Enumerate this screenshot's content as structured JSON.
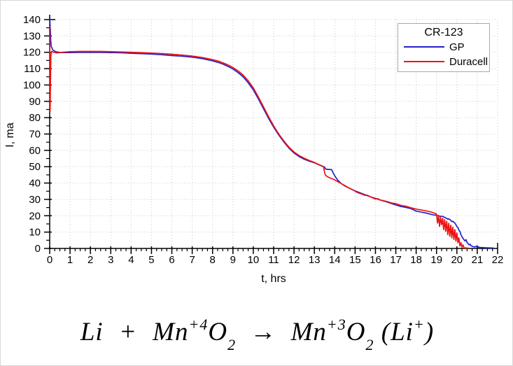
{
  "chart_data": {
    "type": "line",
    "title": "CR-123",
    "xlabel": "t, hrs",
    "ylabel": "I, ma",
    "xlim": [
      0,
      22
    ],
    "ylim": [
      0,
      140
    ],
    "grid": true,
    "grid_style": "dotted",
    "grid_color": "#c9c9c9",
    "legend_position": "top-right",
    "x_tick_labels": [
      "0",
      "1",
      "2",
      "3",
      "4",
      "5",
      "6",
      "7",
      "8",
      "9",
      "10",
      "11",
      "12",
      "13",
      "14",
      "15",
      "16",
      "17",
      "18",
      "19",
      "20",
      "21",
      "22"
    ],
    "y_tick_labels": [
      "0",
      "10",
      "20",
      "30",
      "40",
      "50",
      "60",
      "70",
      "80",
      "90",
      "100",
      "110",
      "120",
      "130",
      "140"
    ],
    "x_minor_step": 0.25,
    "y_minor_step": 5,
    "series": [
      {
        "name": "GP",
        "color": "#2222cc",
        "points": [
          [
            0,
            141
          ],
          [
            0.03,
            134
          ],
          [
            0.05,
            127
          ],
          [
            0.08,
            123.5
          ],
          [
            0.15,
            121.5
          ],
          [
            0.3,
            120.3
          ],
          [
            0.6,
            119.8
          ],
          [
            1,
            119.8
          ],
          [
            1.5,
            119.9
          ],
          [
            2,
            119.9
          ],
          [
            2.5,
            119.9
          ],
          [
            3,
            119.8
          ],
          [
            3.5,
            119.7
          ],
          [
            4,
            119.4
          ],
          [
            4.5,
            119.2
          ],
          [
            5,
            118.9
          ],
          [
            5.5,
            118.5
          ],
          [
            6,
            118
          ],
          [
            6.5,
            117.6
          ],
          [
            7,
            117
          ],
          [
            7.5,
            116.1
          ],
          [
            8,
            114.8
          ],
          [
            8.25,
            113.9
          ],
          [
            8.5,
            112.8
          ],
          [
            8.75,
            111.4
          ],
          [
            9,
            109.8
          ],
          [
            9.25,
            107.6
          ],
          [
            9.5,
            105
          ],
          [
            9.75,
            101.4
          ],
          [
            10,
            97
          ],
          [
            10.25,
            91.5
          ],
          [
            10.5,
            85.5
          ],
          [
            10.75,
            79.6
          ],
          [
            11,
            74.2
          ],
          [
            11.25,
            69.4
          ],
          [
            11.5,
            65.2
          ],
          [
            11.75,
            61.4
          ],
          [
            12,
            58.4
          ],
          [
            12.25,
            56.2
          ],
          [
            12.5,
            54.6
          ],
          [
            12.75,
            53.4
          ],
          [
            13,
            52.4
          ],
          [
            13.25,
            51
          ],
          [
            13.4,
            50.2
          ],
          [
            13.5,
            49.8
          ],
          [
            13.55,
            48.6
          ],
          [
            13.65,
            48.4
          ],
          [
            13.85,
            48.2
          ],
          [
            13.95,
            45.5
          ],
          [
            14.05,
            43.5
          ],
          [
            14.15,
            41.8
          ],
          [
            14.3,
            39.9
          ],
          [
            14.5,
            38.2
          ],
          [
            14.75,
            36.6
          ],
          [
            15,
            35.2
          ],
          [
            15.25,
            34
          ],
          [
            15.5,
            32.8
          ],
          [
            15.75,
            31.6
          ],
          [
            16,
            30.6
          ],
          [
            16.25,
            29.6
          ],
          [
            16.5,
            28.7
          ],
          [
            16.75,
            27.6
          ],
          [
            17,
            26.6
          ],
          [
            17.25,
            25.7
          ],
          [
            17.5,
            25.1
          ],
          [
            17.75,
            24.3
          ],
          [
            18,
            22.8
          ],
          [
            18.25,
            22.2
          ],
          [
            18.5,
            21.6
          ],
          [
            18.75,
            20.8
          ],
          [
            19,
            20.2
          ],
          [
            19.15,
            19.8
          ],
          [
            19.3,
            19.6
          ],
          [
            19.4,
            19
          ],
          [
            19.5,
            18.4
          ],
          [
            19.55,
            17.9
          ],
          [
            19.6,
            18.1
          ],
          [
            19.7,
            17.2
          ],
          [
            19.75,
            16.4
          ],
          [
            19.8,
            16.6
          ],
          [
            19.9,
            15.6
          ],
          [
            19.95,
            14.5
          ],
          [
            20,
            13.4
          ],
          [
            20.05,
            12.8
          ],
          [
            20.1,
            11.2
          ],
          [
            20.15,
            10.4
          ],
          [
            20.2,
            8.4
          ],
          [
            20.25,
            7.2
          ],
          [
            20.3,
            6.2
          ],
          [
            20.35,
            5.3
          ],
          [
            20.4,
            4.6
          ],
          [
            20.45,
            5.4
          ],
          [
            20.5,
            3.6
          ],
          [
            20.55,
            3
          ],
          [
            20.6,
            2.2
          ],
          [
            20.65,
            2.6
          ],
          [
            20.7,
            1.6
          ],
          [
            20.8,
            1.1
          ],
          [
            20.9,
            0.9
          ],
          [
            21,
            1.6
          ],
          [
            21.05,
            0.8
          ],
          [
            21.15,
            0.6
          ],
          [
            21.3,
            0.5
          ],
          [
            21.5,
            0.4
          ],
          [
            21.7,
            0.3
          ],
          [
            21.8,
            0.3
          ]
        ]
      },
      {
        "name": "Duracell",
        "color": "#ee1111",
        "points": [
          [
            0,
            136
          ],
          [
            0.01,
            112
          ],
          [
            0.02,
            84
          ],
          [
            0.04,
            104
          ],
          [
            0.06,
            118
          ],
          [
            0.1,
            120.6
          ],
          [
            0.2,
            120
          ],
          [
            0.35,
            119.6
          ],
          [
            0.6,
            120
          ],
          [
            1,
            120.4
          ],
          [
            1.5,
            120.5
          ],
          [
            2,
            120.5
          ],
          [
            2.5,
            120.5
          ],
          [
            3,
            120.4
          ],
          [
            3.5,
            120.2
          ],
          [
            4,
            120
          ],
          [
            4.5,
            119.8
          ],
          [
            5,
            119.5
          ],
          [
            5.5,
            119.2
          ],
          [
            6,
            118.8
          ],
          [
            6.5,
            118.3
          ],
          [
            7,
            117.7
          ],
          [
            7.5,
            116.8
          ],
          [
            8,
            115.5
          ],
          [
            8.25,
            114.7
          ],
          [
            8.5,
            113.6
          ],
          [
            8.75,
            112.3
          ],
          [
            9,
            110.7
          ],
          [
            9.25,
            108.6
          ],
          [
            9.5,
            106.1
          ],
          [
            9.75,
            102.6
          ],
          [
            10,
            98.2
          ],
          [
            10.25,
            92.6
          ],
          [
            10.5,
            86.6
          ],
          [
            10.75,
            80.6
          ],
          [
            11,
            75
          ],
          [
            11.25,
            70
          ],
          [
            11.5,
            65.8
          ],
          [
            11.75,
            62
          ],
          [
            12,
            59
          ],
          [
            12.25,
            56.8
          ],
          [
            12.5,
            55.2
          ],
          [
            12.75,
            53.8
          ],
          [
            13,
            52.6
          ],
          [
            13.2,
            51.4
          ],
          [
            13.35,
            50.6
          ],
          [
            13.45,
            50
          ],
          [
            13.5,
            46.5
          ],
          [
            13.55,
            44.8
          ],
          [
            13.65,
            43.8
          ],
          [
            13.8,
            43
          ],
          [
            13.95,
            42.2
          ],
          [
            14.1,
            41.2
          ],
          [
            14.3,
            39.8
          ],
          [
            14.5,
            38.4
          ],
          [
            14.7,
            37
          ],
          [
            14.9,
            35.8
          ],
          [
            15.05,
            34.6
          ],
          [
            15.2,
            33.8
          ],
          [
            15.35,
            33.2
          ],
          [
            15.5,
            32.4
          ],
          [
            15.6,
            32.6
          ],
          [
            15.75,
            31.6
          ],
          [
            16,
            30.2
          ],
          [
            16.1,
            30.5
          ],
          [
            16.25,
            29.6
          ],
          [
            16.4,
            29.2
          ],
          [
            16.6,
            28.6
          ],
          [
            16.8,
            27.8
          ],
          [
            17,
            27.4
          ],
          [
            17.15,
            26.8
          ],
          [
            17.3,
            26.2
          ],
          [
            17.5,
            25.8
          ],
          [
            17.7,
            25
          ],
          [
            17.9,
            24.4
          ],
          [
            18.1,
            23.8
          ],
          [
            18.3,
            23.4
          ],
          [
            18.5,
            23
          ],
          [
            18.7,
            22.4
          ],
          [
            18.9,
            21.6
          ],
          [
            19,
            21
          ],
          [
            19.05,
            15.5
          ],
          [
            19.1,
            20.2
          ],
          [
            19.15,
            13.5
          ],
          [
            19.2,
            19.2
          ],
          [
            19.25,
            14.5
          ],
          [
            19.3,
            18.4
          ],
          [
            19.35,
            11.5
          ],
          [
            19.4,
            17.6
          ],
          [
            19.45,
            10.5
          ],
          [
            19.5,
            16.6
          ],
          [
            19.55,
            8.5
          ],
          [
            19.6,
            15.4
          ],
          [
            19.65,
            7.5
          ],
          [
            19.7,
            14.2
          ],
          [
            19.75,
            6.5
          ],
          [
            19.8,
            13
          ],
          [
            19.85,
            5.5
          ],
          [
            19.9,
            11.5
          ],
          [
            19.95,
            4.5
          ],
          [
            20,
            9.5
          ],
          [
            20.05,
            3.5
          ],
          [
            20.1,
            6.5
          ],
          [
            20.15,
            1.5
          ],
          [
            20.2,
            3.5
          ],
          [
            20.25,
            0.8
          ],
          [
            20.3,
            2.2
          ],
          [
            20.35,
            0.4
          ],
          [
            20.45,
            0.3
          ],
          [
            20.55,
            0.2
          ]
        ]
      }
    ]
  },
  "legend": {
    "title": "CR-123",
    "entries": [
      {
        "label": "GP",
        "color": "#2222cc"
      },
      {
        "label": "Duracell",
        "color": "#ee1111"
      }
    ]
  },
  "axes": {
    "x_label": "t, hrs",
    "y_label": "I, ma"
  },
  "formula": {
    "li1": "Li",
    "plus": "+",
    "mn1": "Mn",
    "mn1_sup": "+4",
    "o1": "O",
    "o1_sub": "2",
    "arrow": "→",
    "mn2": "Mn",
    "mn2_sup": "+3",
    "o2": "O",
    "o2_sub": "2",
    "paren_open": "(",
    "li2": "Li",
    "li2_sup": "+",
    "paren_close": ")"
  }
}
